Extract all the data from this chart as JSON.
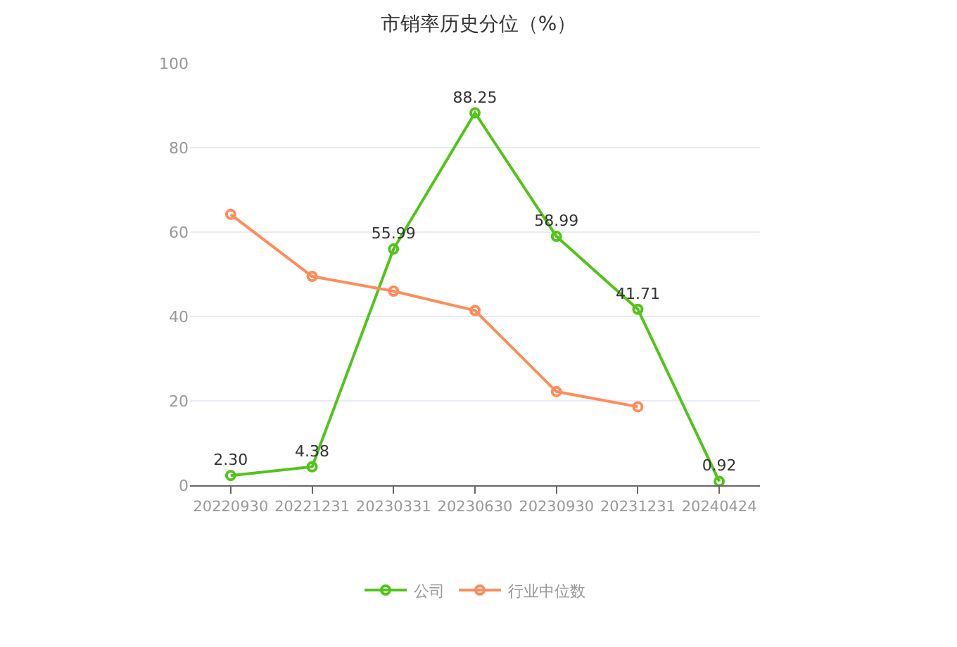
{
  "chart_data": {
    "type": "line",
    "title": "市销率历史分位（%）",
    "categories": [
      "20220930",
      "20221231",
      "20230331",
      "20230630",
      "20230930",
      "20231231",
      "20240424"
    ],
    "series": [
      {
        "name": "公司",
        "color": "#52c41a",
        "values": [
          2.3,
          4.38,
          55.99,
          88.25,
          58.99,
          41.71,
          0.92
        ],
        "value_labels": [
          "2.30",
          "4.38",
          "55.99",
          "88.25",
          "58.99",
          "41.71",
          "0.92"
        ]
      },
      {
        "name": "行业中位数",
        "color": "#ff8c5a",
        "values": [
          64.2,
          49.5,
          46.0,
          41.4,
          22.2,
          18.6,
          null
        ]
      }
    ],
    "ylim": [
      0,
      100
    ],
    "yticks": [
      0,
      20,
      40,
      60,
      80,
      100
    ],
    "grid": "y",
    "legend": "bottom",
    "marker": "circle",
    "line_style": "solid"
  }
}
